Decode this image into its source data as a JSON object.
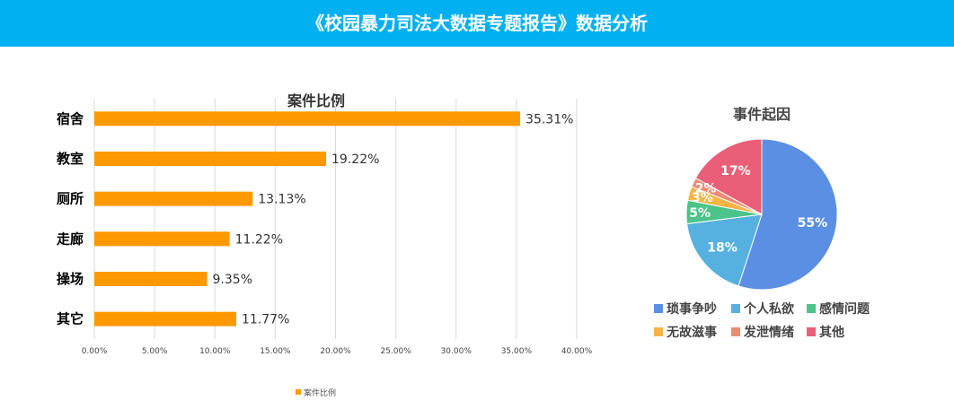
{
  "header": {
    "title": "《校园暴力司法大数据专题报告》数据分析"
  },
  "chart_data": [
    {
      "type": "bar",
      "orientation": "horizontal",
      "title": "案件比例",
      "categories": [
        "宿舍",
        "教室",
        "厕所",
        "走廊",
        "操场",
        "其它"
      ],
      "series": [
        {
          "name": "案件比例",
          "values": [
            35.31,
            19.22,
            13.13,
            11.22,
            9.35,
            11.77
          ],
          "labels": [
            "35.31%",
            "19.22%",
            "13.13%",
            "11.22%",
            "9.35%",
            "11.77%"
          ],
          "color": "#ff9900"
        }
      ],
      "xlim": [
        0,
        40
      ],
      "ticks": [
        "0.00%",
        "5.00%",
        "10.00%",
        "15.00%",
        "20.00%",
        "25.00%",
        "30.00%",
        "35.00%",
        "40.00%"
      ],
      "grid": true,
      "legend": "bottom"
    },
    {
      "type": "pie",
      "title": "事件起因",
      "slices": [
        {
          "name": "琐事争吵",
          "value": 55,
          "label": "55%",
          "color": "#5b8fe3"
        },
        {
          "name": "个人私欲",
          "value": 18,
          "label": "18%",
          "color": "#56b1e0"
        },
        {
          "name": "感情问题",
          "value": 5,
          "label": "5%",
          "color": "#4cc38a"
        },
        {
          "name": "无故滋事",
          "value": 3,
          "label": "3%",
          "color": "#f5b544"
        },
        {
          "name": "发泄情绪",
          "value": 2,
          "label": "2%",
          "color": "#ef8a73"
        },
        {
          "name": "其他",
          "value": 17,
          "label": "17%",
          "color": "#eb5e78"
        }
      ],
      "legend": "bottom"
    }
  ]
}
